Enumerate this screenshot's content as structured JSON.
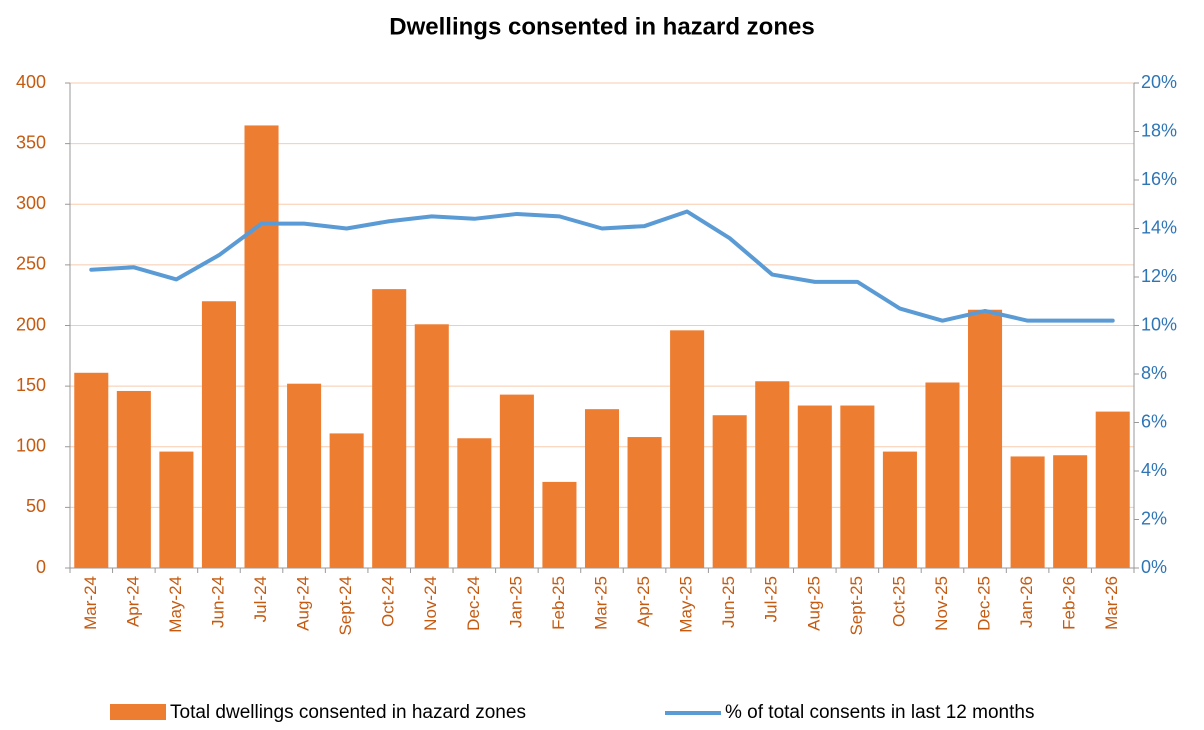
{
  "chart_data": {
    "type": "bar_line",
    "title": "Dwellings consented in hazard zones",
    "categories": [
      "Mar-24",
      "Apr-24",
      "May-24",
      "Jun-24",
      "Jul-24",
      "Aug-24",
      "Sept-24",
      "Oct-24",
      "Nov-24",
      "Dec-24",
      "Jan-25",
      "Feb-25",
      "Mar-25",
      "Apr-25",
      "May-25",
      "Jun-25",
      "Jul-25",
      "Aug-25",
      "Sept-25",
      "Oct-25",
      "Nov-25",
      "Dec-25",
      "Jan-26",
      "Feb-26",
      "Mar-26"
    ],
    "series": [
      {
        "name": "Total dwellings consented in hazard zones",
        "type": "bar",
        "color": "#ed7d31",
        "values": [
          161,
          146,
          96,
          220,
          365,
          152,
          111,
          230,
          201,
          107,
          143,
          71,
          131,
          108,
          196,
          126,
          154,
          134,
          134,
          96,
          153,
          213,
          92,
          93,
          129
        ]
      },
      {
        "name": "% of total consents in last 12 months",
        "type": "line",
        "axis": "y2",
        "color": "#5b9bd5",
        "values": [
          12.3,
          12.4,
          11.9,
          12.9,
          14.2,
          14.2,
          14.0,
          14.3,
          14.5,
          14.4,
          14.6,
          14.5,
          14.0,
          14.1,
          14.7,
          13.6,
          12.1,
          11.8,
          11.8,
          10.7,
          10.2,
          10.6,
          10.2,
          10.2,
          10.2
        ]
      }
    ],
    "ylim": [
      0,
      400
    ],
    "yticks": [
      0,
      50,
      100,
      150,
      200,
      250,
      300,
      350,
      400
    ],
    "y2lim": [
      0,
      20
    ],
    "y2ticks": [
      {
        "value": 0,
        "label": "0%"
      },
      {
        "value": 2,
        "label": "2%"
      },
      {
        "value": 4,
        "label": "4%"
      },
      {
        "value": 6,
        "label": "6%"
      },
      {
        "value": 8,
        "label": "8%"
      },
      {
        "value": 10,
        "label": "10%"
      },
      {
        "value": 12,
        "label": "12%"
      },
      {
        "value": 14,
        "label": "14%"
      },
      {
        "value": 16,
        "label": "16%"
      },
      {
        "value": 18,
        "label": "18%"
      },
      {
        "value": 20,
        "label": "20%"
      }
    ],
    "grid": true,
    "legend": "bottom"
  }
}
